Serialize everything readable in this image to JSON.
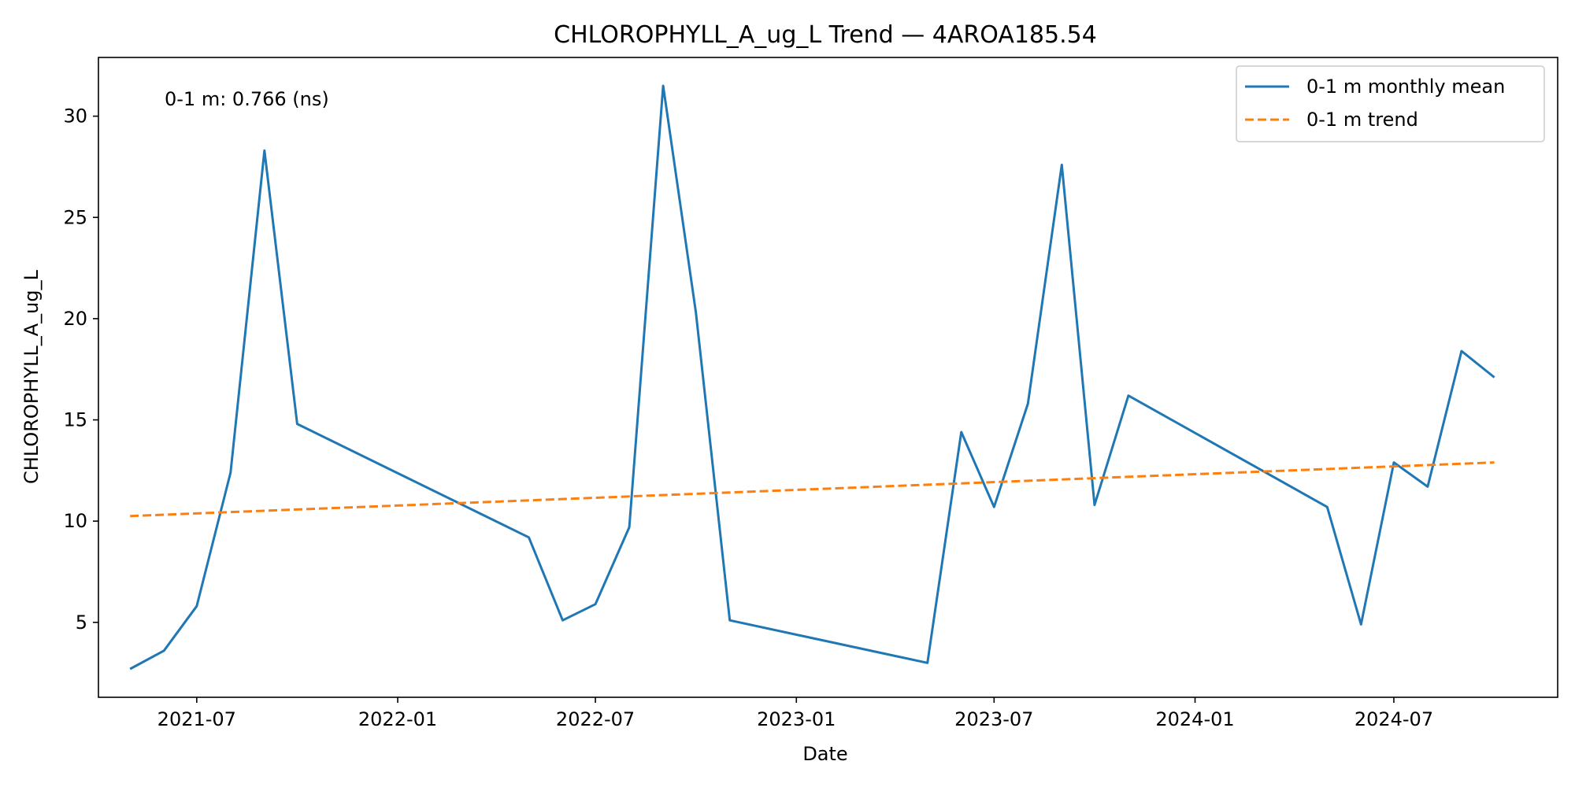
{
  "chart_data": {
    "type": "line",
    "title": "CHLOROPHYLL_A_ug_L Trend — 4AROA185.54",
    "xlabel": "Date",
    "ylabel": "CHLOROPHYLL_A_ug_L",
    "x_ticks": [
      "2021-07",
      "2022-01",
      "2022-07",
      "2023-01",
      "2023-07",
      "2024-01",
      "2024-07"
    ],
    "y_ticks": [
      5,
      10,
      15,
      20,
      25,
      30
    ],
    "ylim": [
      1.3,
      32.9
    ],
    "xlim": [
      "2021-04-02",
      "2024-11-28"
    ],
    "grid": false,
    "legend_position": "top-right",
    "annotation": "0-1 m: 0.766 (ns)",
    "series": [
      {
        "name": "0-1 m monthly mean",
        "color": "#1f77b4",
        "style": "solid",
        "points": [
          {
            "x": "2021-05-01",
            "y": 2.7
          },
          {
            "x": "2021-06-01",
            "y": 3.6
          },
          {
            "x": "2021-07-01",
            "y": 5.8
          },
          {
            "x": "2021-08-01",
            "y": 12.4
          },
          {
            "x": "2021-09-01",
            "y": 28.3
          },
          {
            "x": "2021-10-01",
            "y": 14.8
          },
          {
            "x": "2022-05-01",
            "y": 9.2
          },
          {
            "x": "2022-06-01",
            "y": 5.1
          },
          {
            "x": "2022-07-01",
            "y": 5.9
          },
          {
            "x": "2022-08-01",
            "y": 9.7
          },
          {
            "x": "2022-09-01",
            "y": 31.5
          },
          {
            "x": "2022-10-01",
            "y": 20.3
          },
          {
            "x": "2022-11-01",
            "y": 5.1
          },
          {
            "x": "2023-05-01",
            "y": 3.0
          },
          {
            "x": "2023-06-01",
            "y": 14.4
          },
          {
            "x": "2023-07-01",
            "y": 10.7
          },
          {
            "x": "2023-08-01",
            "y": 15.8
          },
          {
            "x": "2023-09-01",
            "y": 27.6
          },
          {
            "x": "2023-10-01",
            "y": 10.8
          },
          {
            "x": "2023-11-01",
            "y": 16.2
          },
          {
            "x": "2024-05-01",
            "y": 10.7
          },
          {
            "x": "2024-06-01",
            "y": 4.9
          },
          {
            "x": "2024-07-01",
            "y": 12.9
          },
          {
            "x": "2024-08-01",
            "y": 11.7
          },
          {
            "x": "2024-09-01",
            "y": 18.4
          },
          {
            "x": "2024-10-01",
            "y": 17.1
          }
        ]
      },
      {
        "name": "0-1 m trend",
        "color": "#ff7f0e",
        "style": "dashed",
        "points": [
          {
            "x": "2021-05-01",
            "y": 10.25
          },
          {
            "x": "2024-10-01",
            "y": 12.9
          }
        ]
      }
    ]
  }
}
